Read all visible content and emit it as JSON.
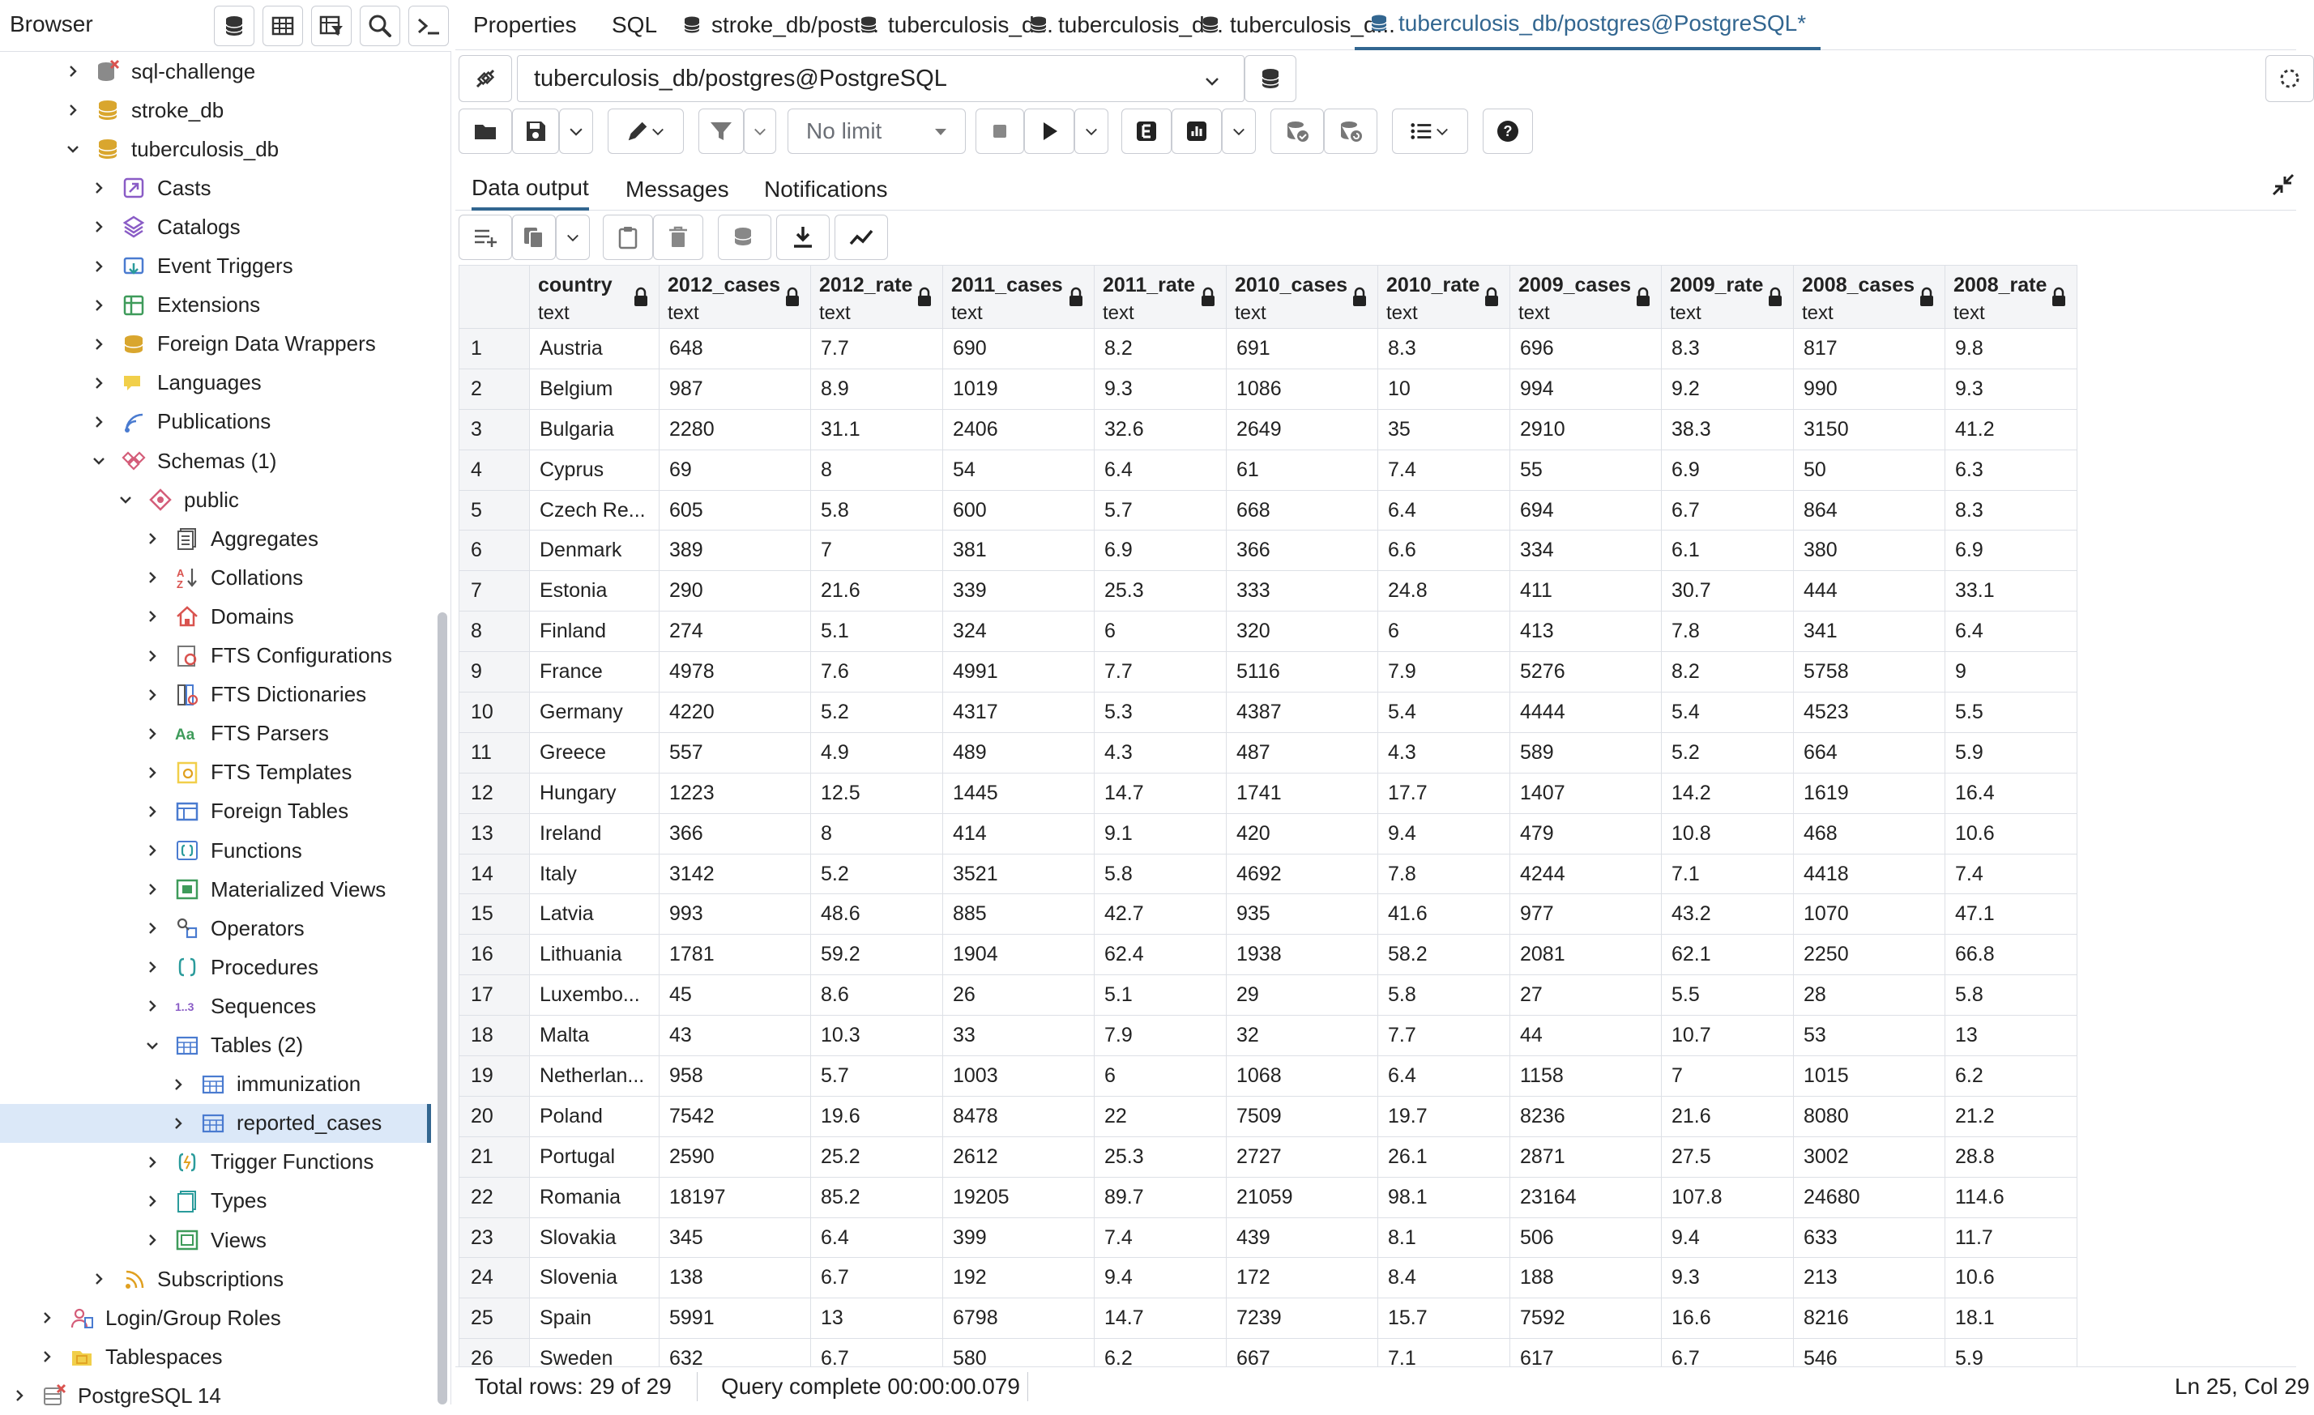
{
  "browser": {
    "title": "Browser",
    "tree": [
      {
        "label": "sql-challenge",
        "level": 1,
        "chevron": "right",
        "icon": "database-error-icon"
      },
      {
        "label": "stroke_db",
        "level": 1,
        "chevron": "right",
        "icon": "database-icon"
      },
      {
        "label": "tuberculosis_db",
        "level": 1,
        "chevron": "down",
        "icon": "database-icon"
      },
      {
        "label": "Casts",
        "level": 2,
        "chevron": "right",
        "icon": "casts-icon"
      },
      {
        "label": "Catalogs",
        "level": 2,
        "chevron": "right",
        "icon": "catalogs-icon"
      },
      {
        "label": "Event Triggers",
        "level": 2,
        "chevron": "right",
        "icon": "event-triggers-icon"
      },
      {
        "label": "Extensions",
        "level": 2,
        "chevron": "right",
        "icon": "extensions-icon"
      },
      {
        "label": "Foreign Data Wrappers",
        "level": 2,
        "chevron": "right",
        "icon": "foreign-data-wrappers-icon"
      },
      {
        "label": "Languages",
        "level": 2,
        "chevron": "right",
        "icon": "languages-icon"
      },
      {
        "label": "Publications",
        "level": 2,
        "chevron": "right",
        "icon": "publications-icon"
      },
      {
        "label": "Schemas (1)",
        "level": 2,
        "chevron": "down",
        "icon": "schemas-icon"
      },
      {
        "label": "public",
        "level": 3,
        "chevron": "down",
        "icon": "schema-public-icon"
      },
      {
        "label": "Aggregates",
        "level": 4,
        "chevron": "right",
        "icon": "aggregates-icon"
      },
      {
        "label": "Collations",
        "level": 4,
        "chevron": "right",
        "icon": "collations-icon"
      },
      {
        "label": "Domains",
        "level": 4,
        "chevron": "right",
        "icon": "domains-icon"
      },
      {
        "label": "FTS Configurations",
        "level": 4,
        "chevron": "right",
        "icon": "fts-configurations-icon"
      },
      {
        "label": "FTS Dictionaries",
        "level": 4,
        "chevron": "right",
        "icon": "fts-dictionaries-icon"
      },
      {
        "label": "FTS Parsers",
        "level": 4,
        "chevron": "right",
        "icon": "fts-parsers-icon"
      },
      {
        "label": "FTS Templates",
        "level": 4,
        "chevron": "right",
        "icon": "fts-templates-icon"
      },
      {
        "label": "Foreign Tables",
        "level": 4,
        "chevron": "right",
        "icon": "foreign-tables-icon"
      },
      {
        "label": "Functions",
        "level": 4,
        "chevron": "right",
        "icon": "functions-icon"
      },
      {
        "label": "Materialized Views",
        "level": 4,
        "chevron": "right",
        "icon": "materialized-views-icon"
      },
      {
        "label": "Operators",
        "level": 4,
        "chevron": "right",
        "icon": "operators-icon"
      },
      {
        "label": "Procedures",
        "level": 4,
        "chevron": "right",
        "icon": "procedures-icon"
      },
      {
        "label": "Sequences",
        "level": 4,
        "chevron": "right",
        "icon": "sequences-icon"
      },
      {
        "label": "Tables (2)",
        "level": 4,
        "chevron": "down",
        "icon": "tables-icon"
      },
      {
        "label": "immunization",
        "level": 5,
        "chevron": "right",
        "icon": "table-icon"
      },
      {
        "label": "reported_cases",
        "level": 5,
        "chevron": "right",
        "icon": "table-icon",
        "selected": true
      },
      {
        "label": "Trigger Functions",
        "level": 4,
        "chevron": "right",
        "icon": "trigger-functions-icon"
      },
      {
        "label": "Types",
        "level": 4,
        "chevron": "right",
        "icon": "types-icon"
      },
      {
        "label": "Views",
        "level": 4,
        "chevron": "right",
        "icon": "views-icon"
      },
      {
        "label": "Subscriptions",
        "level": 2,
        "chevron": "right",
        "icon": "subscriptions-icon"
      },
      {
        "label": "Login/Group Roles",
        "level": 0,
        "chevron": "right",
        "icon": "login-roles-icon"
      },
      {
        "label": "Tablespaces",
        "level": 0,
        "chevron": "right",
        "icon": "tablespaces-icon"
      },
      {
        "label": "PostgreSQL 14",
        "level": -1,
        "chevron": "right",
        "icon": "server-error-icon"
      }
    ]
  },
  "tabs": [
    {
      "label": "Properties",
      "icon": ""
    },
    {
      "label": "SQL",
      "icon": ""
    },
    {
      "label": "stroke_db/post...",
      "icon": "query-tool-icon"
    },
    {
      "label": "tuberculosis_d...",
      "icon": "query-tool-icon"
    },
    {
      "label": "tuberculosis_d...",
      "icon": "query-tool-icon"
    },
    {
      "label": "tuberculosis_d...",
      "icon": "query-tool-icon"
    },
    {
      "label": "tuberculosis_db/postgres@PostgreSQL*",
      "icon": "query-tool-icon",
      "active": true
    }
  ],
  "connection": {
    "value": "tuberculosis_db/postgres@PostgreSQL"
  },
  "toolbar": {
    "limit_value": "No limit"
  },
  "output_tabs": [
    "Data output",
    "Messages",
    "Notifications"
  ],
  "grid": {
    "columns": [
      {
        "name": "country",
        "type": "text"
      },
      {
        "name": "2012_cases",
        "type": "text"
      },
      {
        "name": "2012_rate",
        "type": "text"
      },
      {
        "name": "2011_cases",
        "type": "text"
      },
      {
        "name": "2011_rate",
        "type": "text"
      },
      {
        "name": "2010_cases",
        "type": "text"
      },
      {
        "name": "2010_rate",
        "type": "text"
      },
      {
        "name": "2009_cases",
        "type": "text"
      },
      {
        "name": "2009_rate",
        "type": "text"
      },
      {
        "name": "2008_cases",
        "type": "text"
      },
      {
        "name": "2008_rate",
        "type": "text"
      }
    ],
    "rows": [
      [
        "1",
        "Austria",
        "648",
        "7.7",
        "690",
        "8.2",
        "691",
        "8.3",
        "696",
        "8.3",
        "817",
        "9.8"
      ],
      [
        "2",
        "Belgium",
        "987",
        "8.9",
        "1019",
        "9.3",
        "1086",
        "10",
        "994",
        "9.2",
        "990",
        "9.3"
      ],
      [
        "3",
        "Bulgaria",
        "2280",
        "31.1",
        "2406",
        "32.6",
        "2649",
        "35",
        "2910",
        "38.3",
        "3150",
        "41.2"
      ],
      [
        "4",
        "Cyprus",
        "69",
        "8",
        "54",
        "6.4",
        "61",
        "7.4",
        "55",
        "6.9",
        "50",
        "6.3"
      ],
      [
        "5",
        "Czech Re...",
        "605",
        "5.8",
        "600",
        "5.7",
        "668",
        "6.4",
        "694",
        "6.7",
        "864",
        "8.3"
      ],
      [
        "6",
        "Denmark",
        "389",
        "7",
        "381",
        "6.9",
        "366",
        "6.6",
        "334",
        "6.1",
        "380",
        "6.9"
      ],
      [
        "7",
        "Estonia",
        "290",
        "21.6",
        "339",
        "25.3",
        "333",
        "24.8",
        "411",
        "30.7",
        "444",
        "33.1"
      ],
      [
        "8",
        "Finland",
        "274",
        "5.1",
        "324",
        "6",
        "320",
        "6",
        "413",
        "7.8",
        "341",
        "6.4"
      ],
      [
        "9",
        "France",
        "4978",
        "7.6",
        "4991",
        "7.7",
        "5116",
        "7.9",
        "5276",
        "8.2",
        "5758",
        "9"
      ],
      [
        "10",
        "Germany",
        "4220",
        "5.2",
        "4317",
        "5.3",
        "4387",
        "5.4",
        "4444",
        "5.4",
        "4523",
        "5.5"
      ],
      [
        "11",
        "Greece",
        "557",
        "4.9",
        "489",
        "4.3",
        "487",
        "4.3",
        "589",
        "5.2",
        "664",
        "5.9"
      ],
      [
        "12",
        "Hungary",
        "1223",
        "12.5",
        "1445",
        "14.7",
        "1741",
        "17.7",
        "1407",
        "14.2",
        "1619",
        "16.4"
      ],
      [
        "13",
        "Ireland",
        "366",
        "8",
        "414",
        "9.1",
        "420",
        "9.4",
        "479",
        "10.8",
        "468",
        "10.6"
      ],
      [
        "14",
        "Italy",
        "3142",
        "5.2",
        "3521",
        "5.8",
        "4692",
        "7.8",
        "4244",
        "7.1",
        "4418",
        "7.4"
      ],
      [
        "15",
        "Latvia",
        "993",
        "48.6",
        "885",
        "42.7",
        "935",
        "41.6",
        "977",
        "43.2",
        "1070",
        "47.1"
      ],
      [
        "16",
        "Lithuania",
        "1781",
        "59.2",
        "1904",
        "62.4",
        "1938",
        "58.2",
        "2081",
        "62.1",
        "2250",
        "66.8"
      ],
      [
        "17",
        "Luxembo...",
        "45",
        "8.6",
        "26",
        "5.1",
        "29",
        "5.8",
        "27",
        "5.5",
        "28",
        "5.8"
      ],
      [
        "18",
        "Malta",
        "43",
        "10.3",
        "33",
        "7.9",
        "32",
        "7.7",
        "44",
        "10.7",
        "53",
        "13"
      ],
      [
        "19",
        "Netherlan...",
        "958",
        "5.7",
        "1003",
        "6",
        "1068",
        "6.4",
        "1158",
        "7",
        "1015",
        "6.2"
      ],
      [
        "20",
        "Poland",
        "7542",
        "19.6",
        "8478",
        "22",
        "7509",
        "19.7",
        "8236",
        "21.6",
        "8080",
        "21.2"
      ],
      [
        "21",
        "Portugal",
        "2590",
        "25.2",
        "2612",
        "25.3",
        "2727",
        "26.1",
        "2871",
        "27.5",
        "3002",
        "28.8"
      ],
      [
        "22",
        "Romania",
        "18197",
        "85.2",
        "19205",
        "89.7",
        "21059",
        "98.1",
        "23164",
        "107.8",
        "24680",
        "114.6"
      ],
      [
        "23",
        "Slovakia",
        "345",
        "6.4",
        "399",
        "7.4",
        "439",
        "8.1",
        "506",
        "9.4",
        "633",
        "11.7"
      ],
      [
        "24",
        "Slovenia",
        "138",
        "6.7",
        "192",
        "9.4",
        "172",
        "8.4",
        "188",
        "9.3",
        "213",
        "10.6"
      ],
      [
        "25",
        "Spain",
        "5991",
        "13",
        "6798",
        "14.7",
        "7239",
        "15.7",
        "7592",
        "16.6",
        "8216",
        "18.1"
      ],
      [
        "26",
        "Sweden",
        "632",
        "6.7",
        "580",
        "6.2",
        "667",
        "7.1",
        "617",
        "6.7",
        "546",
        "5.9"
      ]
    ]
  },
  "status": {
    "total_rows": "Total rows: 29 of 29",
    "query_status": "Query complete 00:00:00.079",
    "cursor": "Ln 25, Col 29"
  },
  "colors": {
    "accent": "#326690",
    "selected_bg": "#dbe8f8",
    "db_icon": "#d9a62e",
    "error_red": "#d9534f",
    "pink_icon": "#d45d79",
    "border": "#dde0e6"
  }
}
